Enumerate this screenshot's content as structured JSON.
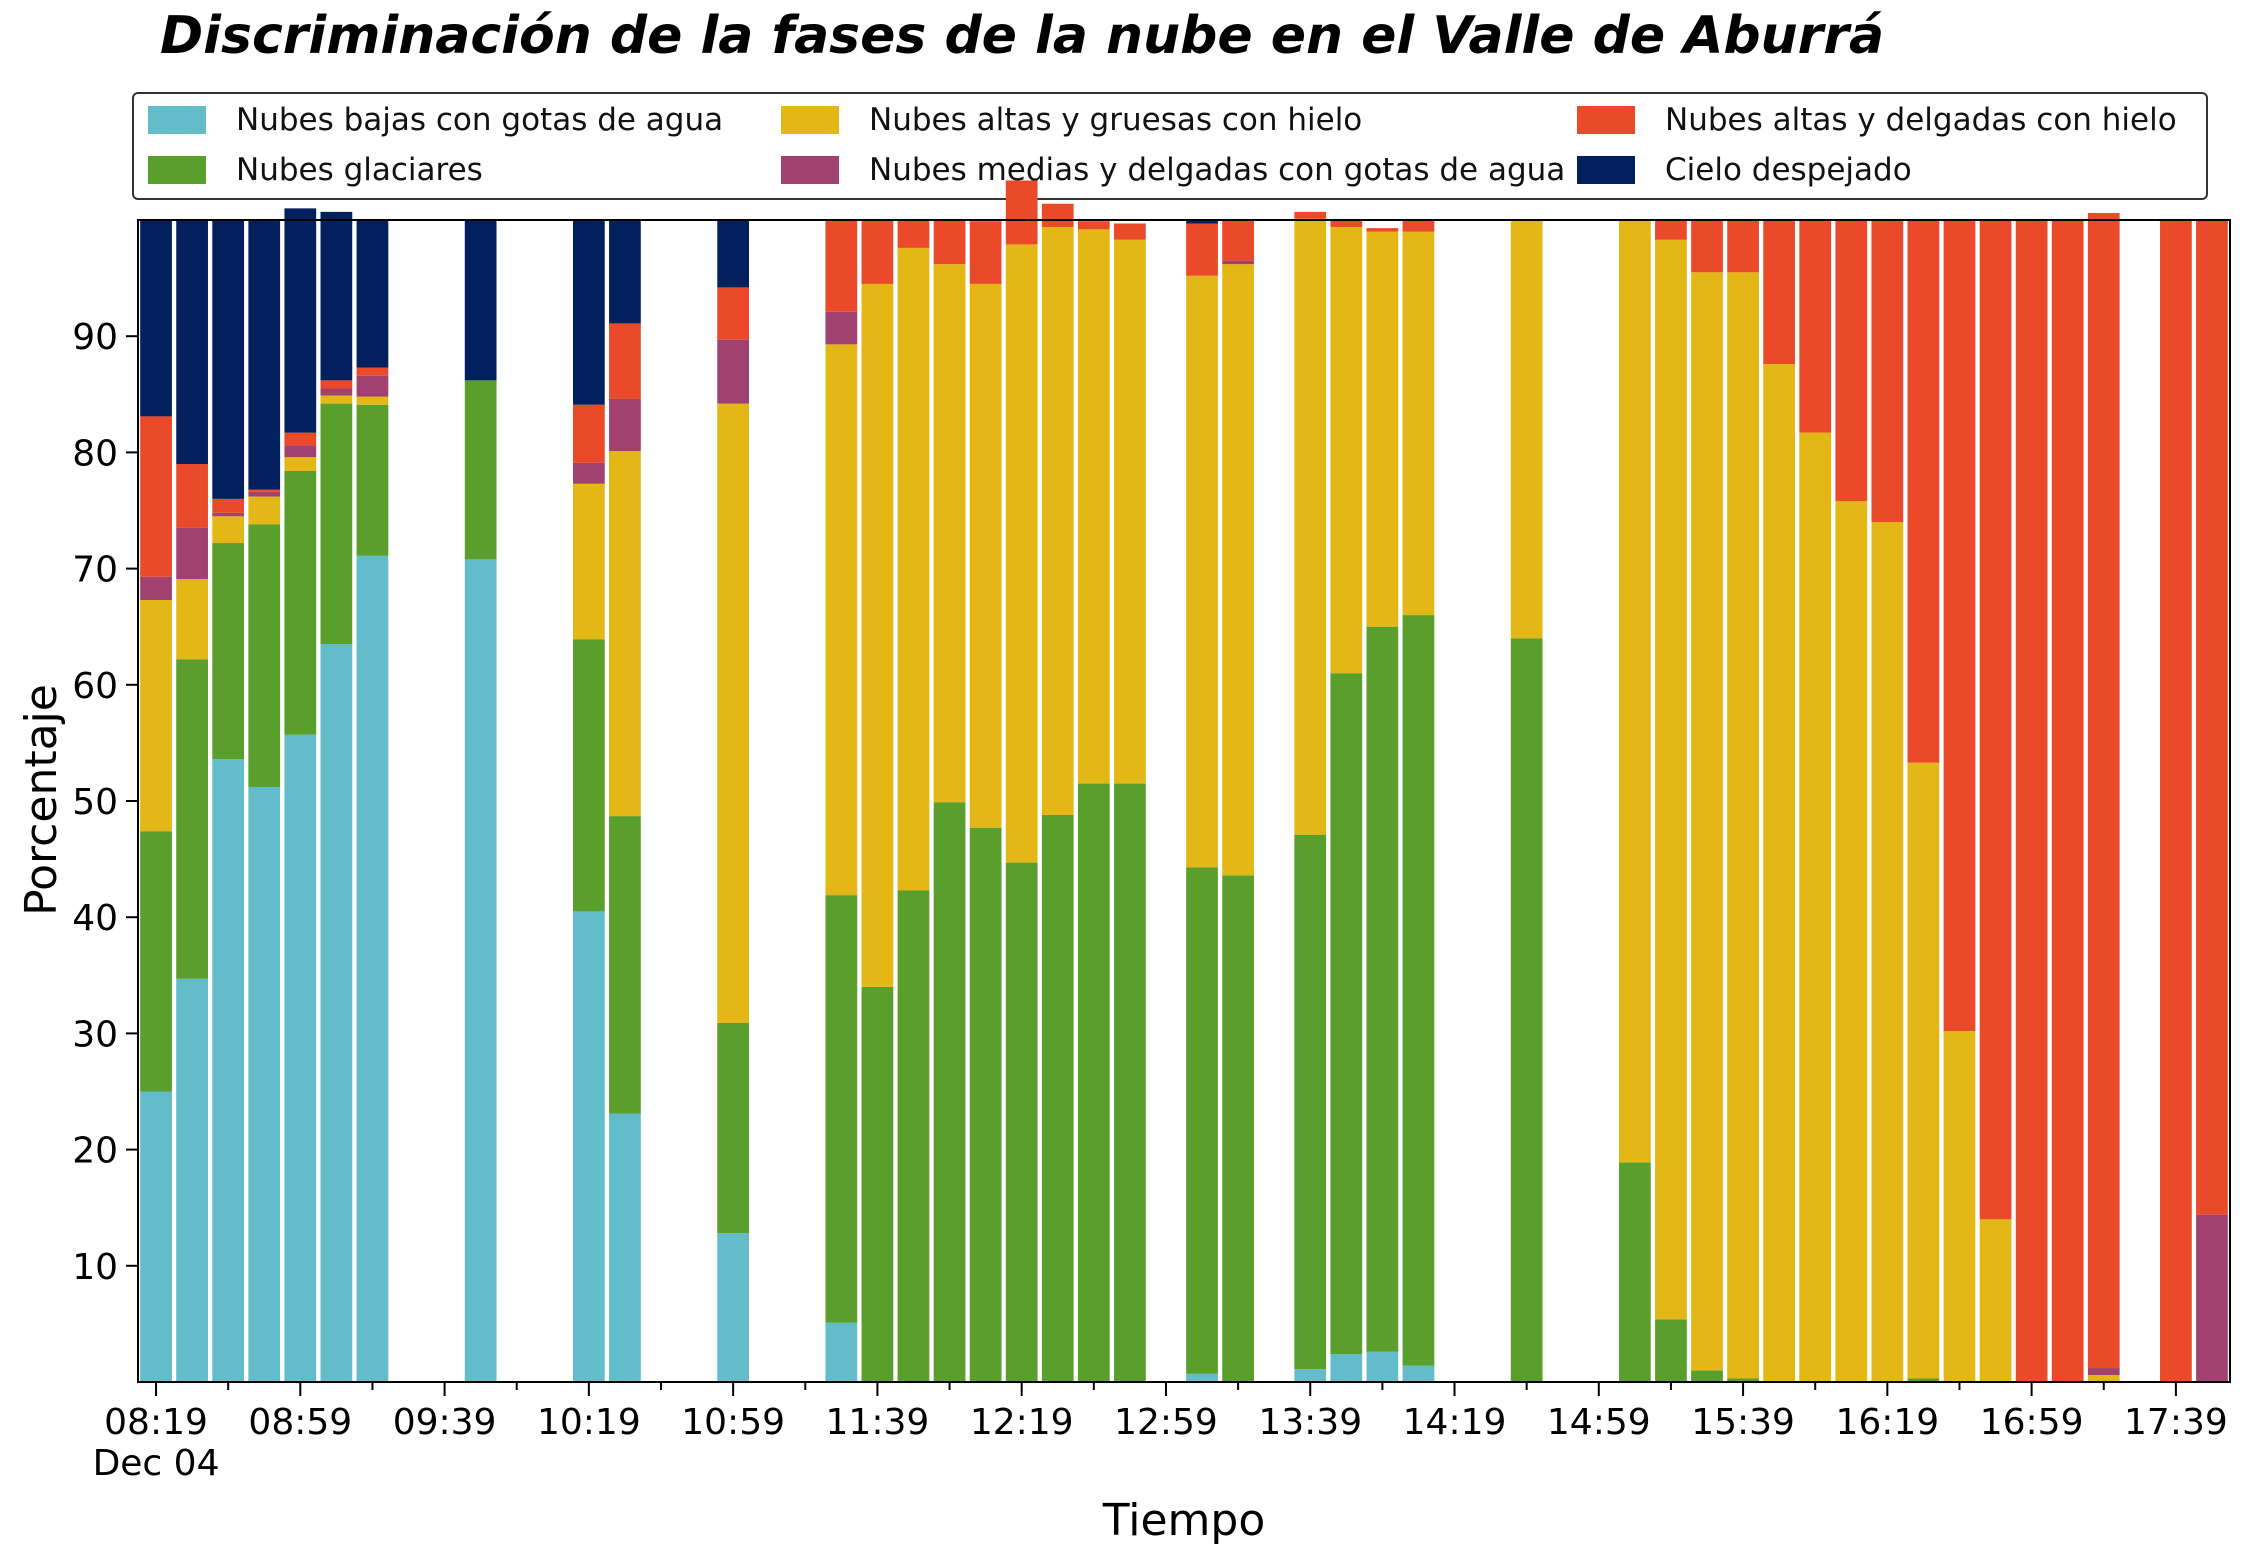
{
  "chart_data": {
    "type": "bar",
    "stacked": true,
    "title": "Discriminación de la fases de la nube en el Valle de Aburrá",
    "xlabel": "Tiempo",
    "ylabel": "Porcentaje",
    "ylim": [
      0,
      100
    ],
    "y_ticks": [
      10,
      20,
      30,
      40,
      50,
      60,
      70,
      80,
      90
    ],
    "x_tick_labels": [
      "08:19",
      "08:59",
      "09:39",
      "10:19",
      "10:59",
      "11:39",
      "12:19",
      "12:59",
      "13:39",
      "14:19",
      "14:59",
      "15:39",
      "16:19",
      "16:59",
      "17:39"
    ],
    "x_date_label": "Dec 04",
    "legend_position": "top",
    "categories": [
      "08:19",
      "08:29",
      "08:39",
      "08:49",
      "08:59",
      "09:09",
      "09:19",
      "09:29",
      "09:39",
      "09:49",
      "09:59",
      "10:09",
      "10:19",
      "10:29",
      "10:39",
      "10:49",
      "10:59",
      "11:09",
      "11:19",
      "11:29",
      "11:39",
      "11:49",
      "11:59",
      "12:09",
      "12:19",
      "12:29",
      "12:39",
      "12:49",
      "12:59",
      "13:09",
      "13:19",
      "13:29",
      "13:39",
      "13:49",
      "13:59",
      "14:09",
      "14:19",
      "14:29",
      "14:39",
      "14:49",
      "14:59",
      "15:09",
      "15:19",
      "15:29",
      "15:39",
      "15:49",
      "15:59",
      "16:09",
      "16:19",
      "16:29",
      "16:39",
      "16:49",
      "16:59",
      "17:09",
      "17:19",
      "17:29",
      "17:39",
      "17:49"
    ],
    "series": [
      {
        "name": "Nubes bajas con gotas de agua",
        "color": "#62bcc9",
        "values": [
          25,
          34.7,
          53.6,
          51.2,
          55.7,
          63.5,
          71.1,
          0,
          0,
          70.8,
          0,
          0,
          40.5,
          23.1,
          0,
          0,
          12.8,
          0,
          0,
          5.1,
          0,
          0,
          0,
          0,
          0,
          0,
          0,
          0,
          0,
          0.7,
          0,
          0,
          1.1,
          2.4,
          2.6,
          1.4,
          0,
          0,
          0,
          0,
          0,
          0,
          0,
          0,
          0,
          0,
          0,
          0,
          0,
          0,
          0,
          0,
          0,
          0,
          0,
          0,
          0,
          0
        ]
      },
      {
        "name": "Nubes glaciares",
        "color": "#5a9e2b",
        "values": [
          22.4,
          27.5,
          18.6,
          22.6,
          22.7,
          20.7,
          13.0,
          0,
          0,
          15.4,
          0,
          0,
          23.4,
          25.6,
          0,
          0,
          18.1,
          0,
          0,
          36.8,
          34.0,
          42.3,
          49.9,
          47.7,
          44.7,
          48.8,
          51.5,
          51.5,
          0,
          43.6,
          43.6,
          0,
          46.0,
          58.6,
          62.4,
          64.6,
          0,
          0,
          64.0,
          0,
          0,
          18.9,
          5.4,
          1.0,
          0.3,
          0,
          0,
          0,
          0,
          0.3,
          0,
          0,
          0,
          0,
          0,
          0,
          0,
          0
        ]
      },
      {
        "name": "Nubes altas y gruesas con hielo",
        "color": "#e2b716",
        "values": [
          19.9,
          6.9,
          2.3,
          2.4,
          1.2,
          0.7,
          0.7,
          0,
          0,
          0,
          0,
          0,
          13.4,
          31.4,
          0,
          0,
          53.3,
          0,
          0,
          47.4,
          60.5,
          55.3,
          46.3,
          46.8,
          53.2,
          50.6,
          47.7,
          46.8,
          0,
          50.9,
          52.6,
          0,
          53.0,
          38.4,
          34.0,
          33.0,
          0,
          0,
          36.0,
          0,
          0,
          81.1,
          92.9,
          94.5,
          95.2,
          87.6,
          81.7,
          75.8,
          74.0,
          53.0,
          30.2,
          14.0,
          0,
          0,
          0.6,
          0,
          0,
          0
        ]
      },
      {
        "name": "Nubes medias y delgadas con gotas de agua",
        "color": "#a0416f",
        "values": [
          2.0,
          4.4,
          0.3,
          0.4,
          1.0,
          0.6,
          1.8,
          0,
          0,
          0,
          0,
          0,
          1.8,
          4.5,
          0,
          0,
          5.5,
          0,
          0,
          2.8,
          0,
          0,
          0,
          0,
          0,
          0,
          0,
          0,
          0,
          0,
          0.3,
          0,
          0,
          0,
          0,
          0,
          0,
          0,
          0,
          0,
          0,
          0,
          0,
          0,
          0,
          0,
          0,
          0,
          0,
          0,
          0,
          0,
          0,
          0,
          0.6,
          0,
          0,
          14.4
        ]
      },
      {
        "name": "Nubes altas y delgadas con hielo",
        "color": "#eb4a2a",
        "values": [
          13.8,
          5.5,
          1.2,
          0.2,
          1.1,
          0.7,
          0.7,
          0,
          0,
          0,
          0,
          0,
          5.0,
          6.5,
          0,
          0,
          4.5,
          0,
          0,
          7.9,
          5.5,
          2.4,
          3.8,
          5.4,
          5.5,
          2.0,
          0.7,
          1.4,
          0,
          4.5,
          3.5,
          0,
          0.6,
          0.6,
          0.3,
          1.0,
          0,
          0,
          0,
          0,
          0,
          0,
          1.7,
          4.5,
          4.5,
          12.4,
          18.3,
          24.2,
          26.0,
          46.7,
          69.8,
          86.0,
          100,
          100,
          99.4,
          0,
          100,
          85.6
        ]
      },
      {
        "name": "Cielo despejado",
        "color": "#03205e",
        "values": [
          16.9,
          21.0,
          24.0,
          23.2,
          19.3,
          14.5,
          12.7,
          0,
          0,
          13.8,
          0,
          0,
          15.9,
          8.9,
          0,
          0,
          5.8,
          0,
          0,
          0,
          0,
          0,
          0,
          0,
          0,
          0,
          0,
          0,
          0,
          0.3,
          0,
          0,
          0,
          0,
          0,
          0,
          0,
          0,
          0,
          0,
          0,
          0,
          0,
          0,
          0,
          0,
          0,
          0,
          0,
          0,
          0,
          0,
          0,
          0,
          0,
          0,
          0,
          0
        ]
      }
    ]
  }
}
